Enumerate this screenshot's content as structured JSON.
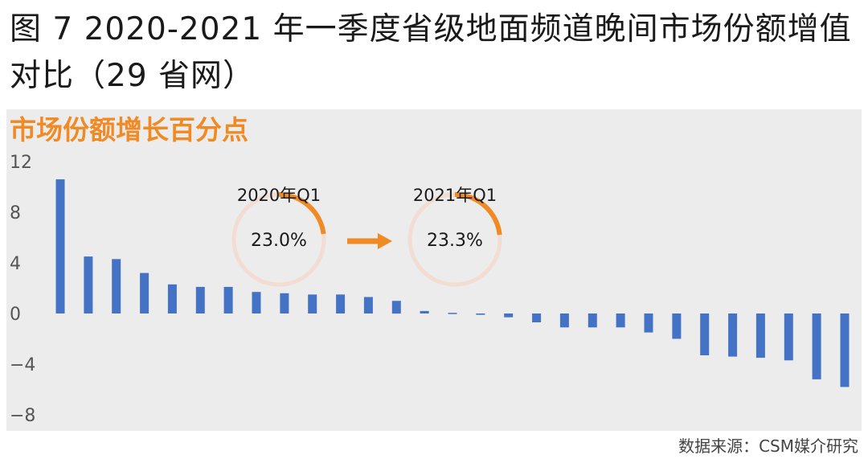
{
  "figure": {
    "title": "图 7 2020-2021 年一季度省级地面频道晚间市场份额增值对比（29 省网）",
    "source": "数据来源：CSM媒介研究"
  },
  "chart_data": {
    "type": "bar",
    "title": "市场份额增长百分点",
    "ylim": [
      -8,
      12
    ],
    "yticks": [
      12,
      8,
      4,
      0,
      -4,
      -8
    ],
    "ytick_labels": [
      "12",
      "8",
      "4",
      "0",
      "−4",
      "−8"
    ],
    "grid": false,
    "bar_color": "#4472c4",
    "values": [
      10.6,
      4.5,
      4.3,
      3.2,
      2.3,
      2.1,
      2.1,
      1.7,
      1.6,
      1.5,
      1.5,
      1.3,
      1.0,
      0.2,
      0.05,
      -0.1,
      -0.3,
      -0.7,
      -1.1,
      -1.1,
      -1.1,
      -1.5,
      -2.0,
      -3.3,
      -3.4,
      -3.5,
      -3.7,
      -5.2,
      -5.8
    ],
    "annotations": {
      "rings": [
        {
          "label": "2020年Q1",
          "value_text": "23.0%",
          "value": 0.23
        },
        {
          "label": "2021年Q1",
          "value_text": "23.3%",
          "value": 0.233
        }
      ],
      "ring_track_color": "#f3dcd2",
      "ring_fill_color": "#f08a24",
      "arrow_color": "#f08a24"
    }
  }
}
